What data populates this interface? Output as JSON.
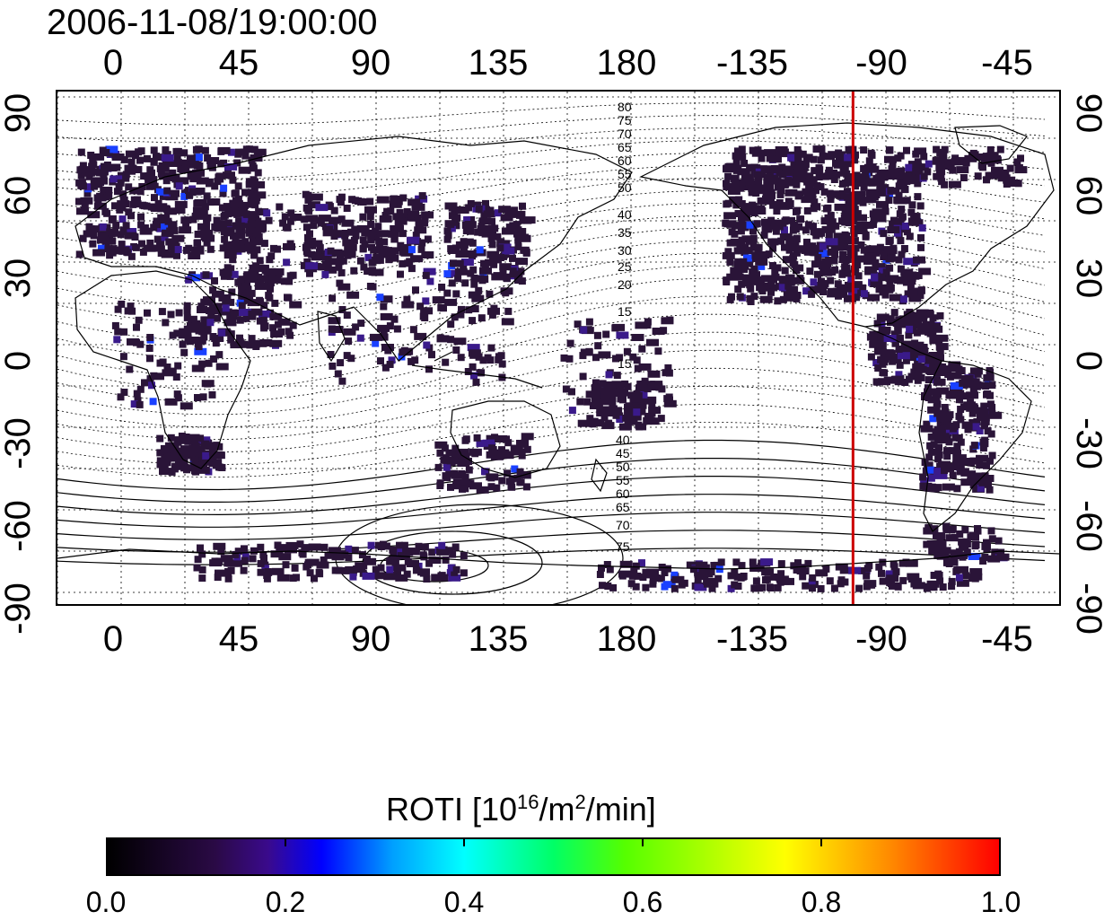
{
  "timestamp": "2006-11-08/19:00:00",
  "x_ticks_top": [
    "0",
    "45",
    "90",
    "135",
    "180",
    "-135",
    "-90",
    "-45"
  ],
  "x_ticks_bottom": [
    "0",
    "45",
    "90",
    "135",
    "180",
    "-135",
    "-90",
    "-45"
  ],
  "y_ticks_left": [
    "90",
    "60",
    "30",
    "0",
    "-30",
    "-60",
    "-90"
  ],
  "y_ticks_right": [
    "90",
    "60",
    "30",
    "0",
    "-30",
    "-60",
    "-90"
  ],
  "contour_labels_north": [
    "80",
    "75",
    "70",
    "65",
    "60",
    "55",
    "50",
    "40",
    "35",
    "30",
    "25",
    "20",
    "15"
  ],
  "contour_labels_south": [
    "15",
    "40",
    "45",
    "50",
    "55",
    "60",
    "65",
    "70",
    "75"
  ],
  "marker_longitude": -100,
  "colorbar": {
    "title_main": "ROTI  [10",
    "title_sup1": "16",
    "title_mid": "/m",
    "title_sup2": "2",
    "title_end": "/min]",
    "ticks": [
      "0.0",
      "0.2",
      "0.4",
      "0.6",
      "0.8",
      "1.0"
    ]
  },
  "colors": {
    "marker": "#cc0000",
    "data_low": "#2a1438",
    "data_mid": "#3a1a8a",
    "data_high": "#1a40ff"
  }
}
